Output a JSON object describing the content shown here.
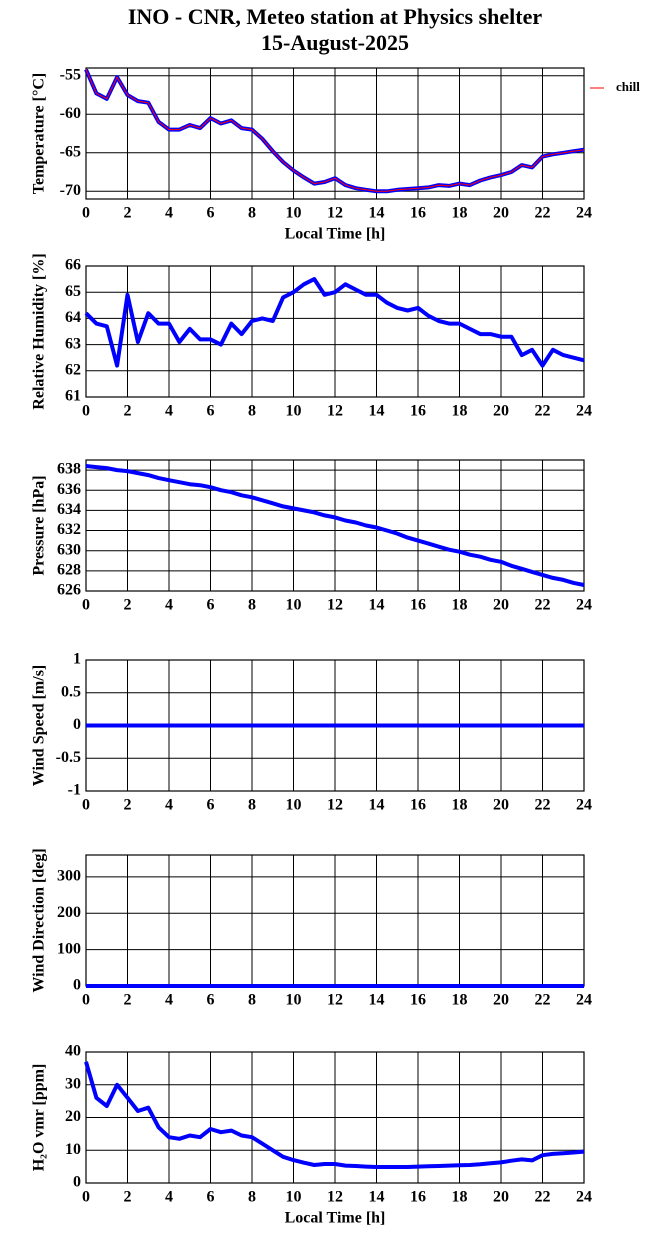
{
  "title": [
    "INO - CNR, Meteo station at Physics shelter",
    "15-August-2025"
  ],
  "chart_data": [
    {
      "type": "line",
      "ylabel": "Temperature [°C]",
      "xlabel": "Local Time [h]",
      "legend": "right",
      "grid": true,
      "x": [
        0,
        0.5,
        1,
        1.5,
        2,
        2.5,
        3,
        3.5,
        4,
        4.5,
        5,
        5.5,
        6,
        6.5,
        7,
        7.5,
        8,
        8.5,
        9,
        9.5,
        10,
        10.5,
        11,
        11.5,
        12,
        12.5,
        13,
        13.5,
        14,
        14.5,
        15,
        15.5,
        16,
        16.5,
        17,
        17.5,
        18,
        18.5,
        19,
        19.5,
        20,
        20.5,
        21,
        21.5,
        22,
        22.5,
        23,
        23.5,
        24
      ],
      "series": [
        {
          "color": "#0000ff",
          "values": [
            -54.2,
            -57.3,
            -58,
            -55.2,
            -57.5,
            -58.3,
            -58.5,
            -61,
            -62,
            -62,
            -61.4,
            -61.8,
            -60.5,
            -61.2,
            -60.8,
            -61.8,
            -62,
            -63.2,
            -64.8,
            -66.2,
            -67.3,
            -68.2,
            -69,
            -68.8,
            -68.3,
            -69.2,
            -69.6,
            -69.8,
            -70,
            -70,
            -69.8,
            -69.7,
            -69.6,
            -69.5,
            -69.2,
            -69.3,
            -69,
            -69.2,
            -68.6,
            -68.2,
            -67.9,
            -67.5,
            -66.6,
            -66.9,
            -65.5,
            -65.2,
            -65,
            -64.8,
            -64.6
          ]
        },
        {
          "name": "chill",
          "color": "#ff0000",
          "values": [
            -54.2,
            -57.3,
            -58,
            -55.2,
            -57.5,
            -58.3,
            -58.5,
            -61,
            -62,
            -62,
            -61.4,
            -61.8,
            -60.5,
            -61.2,
            -60.8,
            -61.8,
            -62,
            -63.2,
            -64.8,
            -66.2,
            -67.3,
            -68.2,
            -69,
            -68.8,
            -68.3,
            -69.2,
            -69.6,
            -69.8,
            -70,
            -70,
            -69.8,
            -69.7,
            -69.6,
            -69.5,
            -69.2,
            -69.3,
            -69,
            -69.2,
            -68.6,
            -68.2,
            -67.9,
            -67.5,
            -66.6,
            -66.9,
            -65.5,
            -65.2,
            -65,
            -64.8,
            -64.6
          ]
        }
      ],
      "xlim": [
        0,
        24
      ],
      "xticks": [
        0,
        2,
        4,
        6,
        8,
        10,
        12,
        14,
        16,
        18,
        20,
        22,
        24
      ],
      "ylim": [
        -71,
        -54
      ],
      "yticks": [
        -70,
        -65,
        -60,
        -55
      ]
    },
    {
      "type": "line",
      "ylabel": "Relative Humidity [%]",
      "grid": true,
      "x": [
        0,
        0.5,
        1,
        1.5,
        2,
        2.5,
        3,
        3.5,
        4,
        4.5,
        5,
        5.5,
        6,
        6.5,
        7,
        7.5,
        8,
        8.5,
        9,
        9.5,
        10,
        10.5,
        11,
        11.5,
        12,
        12.5,
        13,
        13.5,
        14,
        14.5,
        15,
        15.5,
        16,
        16.5,
        17,
        17.5,
        18,
        18.5,
        19,
        19.5,
        20,
        20.5,
        21,
        21.5,
        22,
        22.5,
        23,
        23.5,
        24
      ],
      "series": [
        {
          "color": "#0000ff",
          "values": [
            64.2,
            63.8,
            63.7,
            62.2,
            64.9,
            63.1,
            64.2,
            63.8,
            63.8,
            63.1,
            63.6,
            63.2,
            63.2,
            63.0,
            63.8,
            63.4,
            63.9,
            64,
            63.9,
            64.8,
            65,
            65.3,
            65.5,
            64.9,
            65,
            65.3,
            65.1,
            64.9,
            64.9,
            64.6,
            64.4,
            64.3,
            64.4,
            64.1,
            63.9,
            63.8,
            63.8,
            63.6,
            63.4,
            63.4,
            63.3,
            63.3,
            62.6,
            62.8,
            62.2,
            62.8,
            62.6,
            62.5,
            62.4
          ]
        }
      ],
      "xlim": [
        0,
        24
      ],
      "xticks": [
        0,
        2,
        4,
        6,
        8,
        10,
        12,
        14,
        16,
        18,
        20,
        22,
        24
      ],
      "ylim": [
        61,
        66
      ],
      "yticks": [
        61,
        62,
        63,
        64,
        65,
        66
      ]
    },
    {
      "type": "line",
      "ylabel": "Pressure [hPa]",
      "grid": true,
      "x": [
        0,
        0.5,
        1,
        1.5,
        2,
        2.5,
        3,
        3.5,
        4,
        4.5,
        5,
        5.5,
        6,
        6.5,
        7,
        7.5,
        8,
        8.5,
        9,
        9.5,
        10,
        10.5,
        11,
        11.5,
        12,
        12.5,
        13,
        13.5,
        14,
        14.5,
        15,
        15.5,
        16,
        16.5,
        17,
        17.5,
        18,
        18.5,
        19,
        19.5,
        20,
        20.5,
        21,
        21.5,
        22,
        22.5,
        23,
        23.5,
        24
      ],
      "series": [
        {
          "color": "#0000ff",
          "values": [
            638.4,
            638.3,
            638.2,
            638.0,
            637.9,
            637.7,
            637.5,
            637.2,
            637.0,
            636.8,
            636.6,
            636.5,
            636.3,
            636.0,
            635.8,
            635.5,
            635.3,
            635.0,
            634.7,
            634.4,
            634.2,
            634.0,
            633.8,
            633.5,
            633.3,
            633.0,
            632.8,
            632.5,
            632.3,
            632.0,
            631.7,
            631.3,
            631.0,
            630.7,
            630.4,
            630.1,
            629.9,
            629.6,
            629.4,
            629.1,
            628.9,
            628.5,
            628.2,
            627.9,
            627.6,
            627.3,
            627.1,
            626.8,
            626.6
          ]
        }
      ],
      "xlim": [
        0,
        24
      ],
      "xticks": [
        0,
        2,
        4,
        6,
        8,
        10,
        12,
        14,
        16,
        18,
        20,
        22,
        24
      ],
      "ylim": [
        626,
        639
      ],
      "yticks": [
        626,
        628,
        630,
        632,
        634,
        636,
        638
      ]
    },
    {
      "type": "line",
      "ylabel": "Wind Speed [m/s]",
      "grid": true,
      "x": [
        0,
        0.5,
        1,
        1.5,
        2,
        2.5,
        3,
        3.5,
        4,
        4.5,
        5,
        5.5,
        6,
        6.5,
        7,
        7.5,
        8,
        8.5,
        9,
        9.5,
        10,
        10.5,
        11,
        11.5,
        12,
        12.5,
        13,
        13.5,
        14,
        14.5,
        15,
        15.5,
        16,
        16.5,
        17,
        17.5,
        18,
        18.5,
        19,
        19.5,
        20,
        20.5,
        21,
        21.5,
        22,
        22.5,
        23,
        23.5,
        24
      ],
      "series": [
        {
          "color": "#0000ff",
          "values": [
            0,
            0,
            0,
            0,
            0,
            0,
            0,
            0,
            0,
            0,
            0,
            0,
            0,
            0,
            0,
            0,
            0,
            0,
            0,
            0,
            0,
            0,
            0,
            0,
            0,
            0,
            0,
            0,
            0,
            0,
            0,
            0,
            0,
            0,
            0,
            0,
            0,
            0,
            0,
            0,
            0,
            0,
            0,
            0,
            0,
            0,
            0,
            0,
            0
          ]
        }
      ],
      "xlim": [
        0,
        24
      ],
      "xticks": [
        0,
        2,
        4,
        6,
        8,
        10,
        12,
        14,
        16,
        18,
        20,
        22,
        24
      ],
      "ylim": [
        -1,
        1
      ],
      "yticks": [
        -1,
        -0.5,
        0,
        0.5,
        1
      ]
    },
    {
      "type": "line",
      "ylabel": "Wind Direction [deg]",
      "grid": true,
      "x": [
        0,
        0.5,
        1,
        1.5,
        2,
        2.5,
        3,
        3.5,
        4,
        4.5,
        5,
        5.5,
        6,
        6.5,
        7,
        7.5,
        8,
        8.5,
        9,
        9.5,
        10,
        10.5,
        11,
        11.5,
        12,
        12.5,
        13,
        13.5,
        14,
        14.5,
        15,
        15.5,
        16,
        16.5,
        17,
        17.5,
        18,
        18.5,
        19,
        19.5,
        20,
        20.5,
        21,
        21.5,
        22,
        22.5,
        23,
        23.5,
        24
      ],
      "series": [
        {
          "color": "#0000ff",
          "values": [
            0,
            0,
            0,
            0,
            0,
            0,
            0,
            0,
            0,
            0,
            0,
            0,
            0,
            0,
            0,
            0,
            0,
            0,
            0,
            0,
            0,
            0,
            0,
            0,
            0,
            0,
            0,
            0,
            0,
            0,
            0,
            0,
            0,
            0,
            0,
            0,
            0,
            0,
            0,
            0,
            0,
            0,
            0,
            0,
            0,
            0,
            0,
            0,
            0
          ]
        }
      ],
      "xlim": [
        0,
        24
      ],
      "xticks": [
        0,
        2,
        4,
        6,
        8,
        10,
        12,
        14,
        16,
        18,
        20,
        22,
        24
      ],
      "ylim": [
        0,
        360
      ],
      "yticks": [
        0,
        100,
        200,
        300
      ]
    },
    {
      "type": "line",
      "ylabel": "H₂O vmr [ppm]",
      "xlabel": "Local Time [h]",
      "grid": true,
      "x": [
        0,
        0.5,
        1,
        1.5,
        2,
        2.5,
        3,
        3.5,
        4,
        4.5,
        5,
        5.5,
        6,
        6.5,
        7,
        7.5,
        8,
        8.5,
        9,
        9.5,
        10,
        10.5,
        11,
        11.5,
        12,
        12.5,
        13,
        13.5,
        14,
        14.5,
        15,
        15.5,
        16,
        16.5,
        17,
        17.5,
        18,
        18.5,
        19,
        19.5,
        20,
        20.5,
        21,
        21.5,
        22,
        22.5,
        23,
        23.5,
        24
      ],
      "series": [
        {
          "color": "#0000ff",
          "values": [
            37,
            26,
            23.5,
            30,
            26,
            22,
            23,
            17,
            14,
            13.5,
            14.5,
            14,
            16.5,
            15.5,
            16,
            14.5,
            14,
            12,
            10,
            8,
            7,
            6.2,
            5.5,
            5.8,
            5.8,
            5.3,
            5.2,
            5,
            4.9,
            4.9,
            4.9,
            4.9,
            5,
            5.1,
            5.2,
            5.3,
            5.4,
            5.5,
            5.7,
            6,
            6.3,
            6.8,
            7.2,
            6.9,
            8.5,
            8.9,
            9.1,
            9.3,
            9.6
          ]
        }
      ],
      "xlim": [
        0,
        24
      ],
      "xticks": [
        0,
        2,
        4,
        6,
        8,
        10,
        12,
        14,
        16,
        18,
        20,
        22,
        24
      ],
      "ylim": [
        0,
        40
      ],
      "yticks": [
        0,
        10,
        20,
        30,
        40
      ]
    }
  ]
}
